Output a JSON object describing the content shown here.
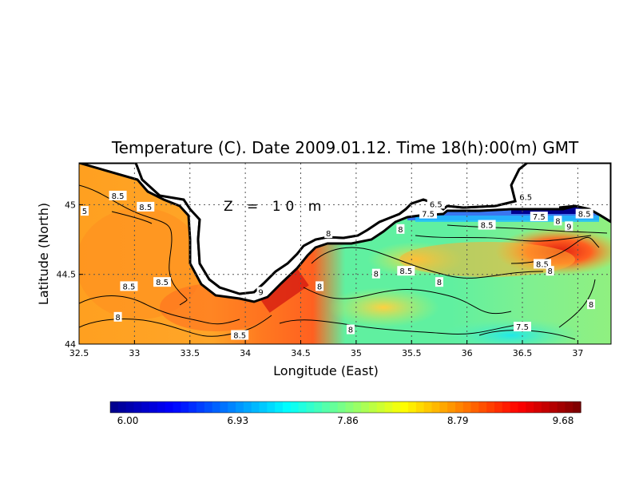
{
  "chart_data": {
    "type": "heatmap",
    "title": "Temperature (C). Date 2009.01.12. Time 18(h):00(m) GMT",
    "xlabel": "Longitude (East)",
    "ylabel": "Latitude (North)",
    "annotation": "Z = 10 m",
    "xlim": [
      32.5,
      37.3
    ],
    "ylim": [
      44.0,
      45.3
    ],
    "x_ticks": [
      "32.5",
      "33",
      "33.5",
      "34",
      "34.5",
      "35",
      "35.5",
      "36",
      "36.5",
      "37"
    ],
    "x_tick_values": [
      32.5,
      33,
      33.5,
      34,
      34.5,
      35,
      35.5,
      36,
      36.5,
      37
    ],
    "y_ticks": [
      "44",
      "44.5",
      "45"
    ],
    "y_tick_values": [
      44.0,
      44.5,
      45.0
    ],
    "grid": "dotted",
    "colorbar": {
      "min": 6.0,
      "max": 9.68,
      "tick_labels": [
        "6.00",
        "6.93",
        "7.86",
        "8.79",
        "9.68"
      ],
      "tick_values": [
        6.0,
        6.93,
        7.86,
        8.79,
        9.68
      ],
      "colormap": [
        "#00008f",
        "#0000ff",
        "#0080ff",
        "#00ffff",
        "#80ff80",
        "#ffff00",
        "#ff8000",
        "#ff0000",
        "#800000"
      ],
      "placement": "bottom"
    },
    "contour_labels": [
      {
        "text": "8.5",
        "lon": 32.85,
        "lat": 45.06
      },
      {
        "text": "8.5",
        "lon": 33.1,
        "lat": 44.98
      },
      {
        "text": "5",
        "lon": 32.55,
        "lat": 44.95
      },
      {
        "text": "8.5",
        "lon": 32.95,
        "lat": 44.41
      },
      {
        "text": "8.5",
        "lon": 33.25,
        "lat": 44.44
      },
      {
        "text": "8",
        "lon": 32.85,
        "lat": 44.19
      },
      {
        "text": "8.5",
        "lon": 33.95,
        "lat": 44.06
      },
      {
        "text": "9",
        "lon": 34.14,
        "lat": 44.37
      },
      {
        "text": "8",
        "lon": 34.67,
        "lat": 44.41
      },
      {
        "text": "8",
        "lon": 34.75,
        "lat": 44.79
      },
      {
        "text": "8",
        "lon": 35.18,
        "lat": 44.5
      },
      {
        "text": "8",
        "lon": 34.95,
        "lat": 44.1
      },
      {
        "text": "8.5",
        "lon": 35.45,
        "lat": 44.52
      },
      {
        "text": "8",
        "lon": 35.4,
        "lat": 44.82
      },
      {
        "text": "8",
        "lon": 35.75,
        "lat": 44.44
      },
      {
        "text": "6.5",
        "lon": 35.72,
        "lat": 45.0
      },
      {
        "text": "7.5",
        "lon": 35.65,
        "lat": 44.93
      },
      {
        "text": "6.5",
        "lon": 36.53,
        "lat": 45.05
      },
      {
        "text": "7.5",
        "lon": 36.65,
        "lat": 44.91
      },
      {
        "text": "8",
        "lon": 36.82,
        "lat": 44.88
      },
      {
        "text": "8.5",
        "lon": 37.06,
        "lat": 44.93
      },
      {
        "text": "8.5",
        "lon": 36.18,
        "lat": 44.85
      },
      {
        "text": "9",
        "lon": 36.92,
        "lat": 44.84
      },
      {
        "text": "8.5",
        "lon": 36.68,
        "lat": 44.57
      },
      {
        "text": "8",
        "lon": 36.75,
        "lat": 44.52
      },
      {
        "text": "8",
        "lon": 37.12,
        "lat": 44.28
      },
      {
        "text": "7.5",
        "lon": 36.5,
        "lat": 44.12
      }
    ]
  }
}
